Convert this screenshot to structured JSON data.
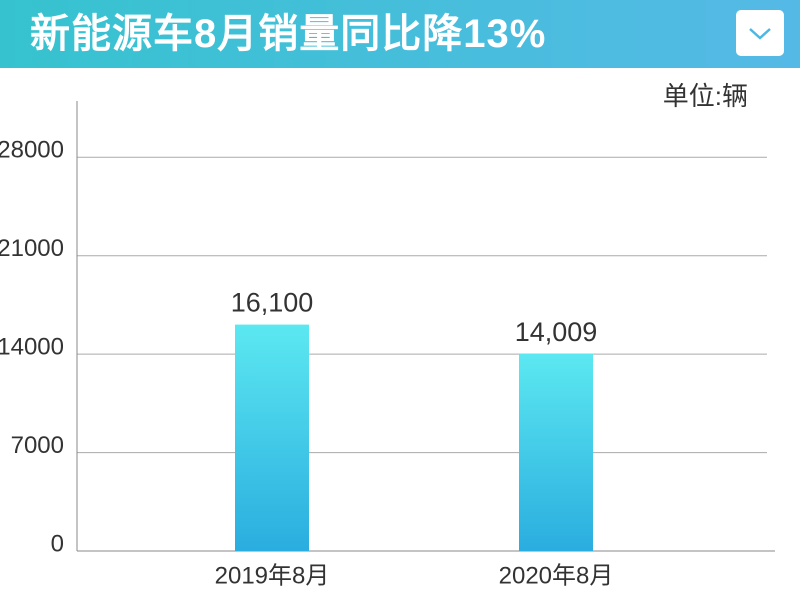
{
  "chart_data": {
    "type": "bar",
    "title": "新能源车8月销量同比降13%",
    "unit_label": "单位:辆",
    "categories": [
      "2019年8月",
      "2020年8月"
    ],
    "values": [
      16100,
      14009
    ],
    "value_labels": [
      "16,100",
      "14,009"
    ],
    "color": [
      "#5ce8f1",
      "#2aaddf"
    ],
    "ylim": [
      0,
      32000
    ],
    "yticks": [
      0,
      7000,
      14000,
      21000,
      28000
    ],
    "grid": true
  }
}
